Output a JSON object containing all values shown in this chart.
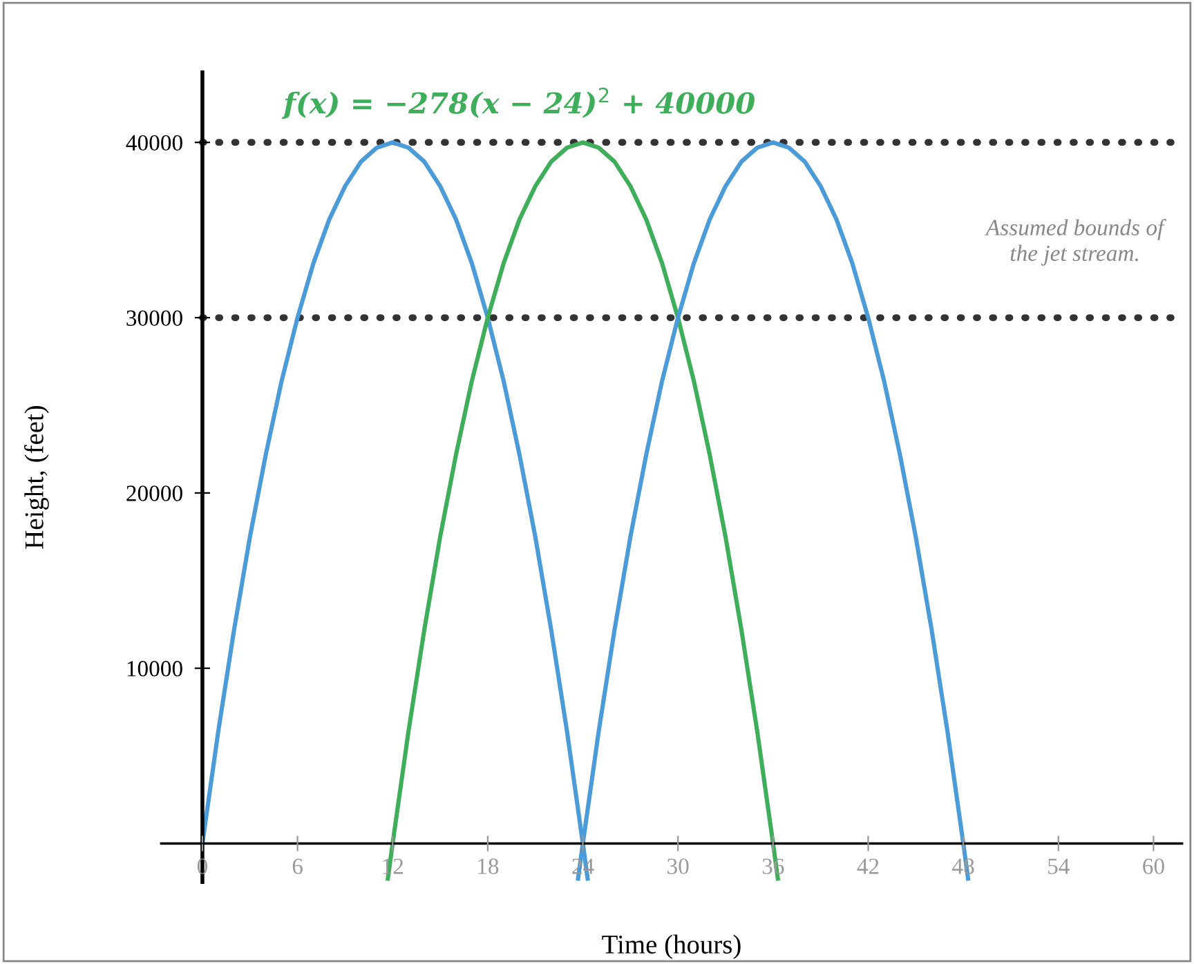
{
  "chart_data": {
    "type": "line",
    "xlabel": "Time (hours)",
    "ylabel": "Height, (feet)",
    "xlim": [
      -2.6,
      61.8
    ],
    "ylim": [
      -2200,
      44000
    ],
    "xticks": [
      {
        "value": 0,
        "label": "0"
      },
      6,
      12,
      18,
      24,
      30,
      36,
      42,
      48,
      54,
      60
    ],
    "yticks": [
      {
        "value": 0,
        "label": null
      },
      10000,
      20000,
      30000,
      40000
    ],
    "grid": false,
    "legend": false,
    "marker": "none",
    "line_style": "solid",
    "series": [
      {
        "color": "#4a9bd8",
        "x": [
          0,
          1,
          2,
          3,
          4,
          5,
          6,
          7,
          8,
          9,
          10,
          11,
          12,
          13,
          14,
          15,
          16,
          17,
          18,
          19,
          20,
          21,
          22,
          23,
          24,
          24.3
        ],
        "values": [
          0,
          6400,
          12200,
          17500,
          22200,
          26400,
          30000,
          33100,
          35600,
          37500,
          38900,
          39700,
          40000,
          39700,
          38900,
          37500,
          35600,
          33100,
          30000,
          26400,
          22200,
          17500,
          12200,
          6400,
          0,
          -2000
        ]
      },
      {
        "name": "f(x) = −278(x − 24)$^{2}$ + 40000",
        "color": "#3fae5a",
        "x": [
          11.7,
          12,
          13,
          14,
          15,
          16,
          17,
          18,
          19,
          20,
          21,
          22,
          23,
          24,
          25,
          26,
          27,
          28,
          29,
          30,
          31,
          32,
          33,
          34,
          35,
          36,
          36.3
        ],
        "values": [
          -2000,
          0,
          6400,
          12200,
          17500,
          22200,
          26400,
          30000,
          33100,
          35600,
          37500,
          38900,
          39700,
          40000,
          39700,
          38900,
          37500,
          35600,
          33100,
          30000,
          26400,
          22200,
          17500,
          12200,
          6400,
          0,
          -2000
        ]
      },
      {
        "color": "#4a9bd8",
        "x": [
          23.7,
          24,
          25,
          26,
          27,
          28,
          29,
          30,
          31,
          32,
          33,
          34,
          35,
          36,
          37,
          38,
          39,
          40,
          41,
          42,
          43,
          44,
          45,
          46,
          47,
          48,
          48.3
        ],
        "values": [
          -2000,
          0,
          6400,
          12200,
          17500,
          22200,
          26400,
          30000,
          33100,
          35600,
          37500,
          38900,
          39700,
          40000,
          39700,
          38900,
          37500,
          35600,
          33100,
          30000,
          26400,
          22200,
          17500,
          12200,
          6400,
          0,
          -2000
        ]
      }
    ],
    "ref_lines": [
      {
        "axis": "y",
        "value": 40000,
        "color": "#333333",
        "line_style": "dotted"
      },
      {
        "axis": "y",
        "value": 30000,
        "color": "#333333",
        "line_style": "dotted"
      }
    ],
    "annotations": [
      "Assumed bounds of\nthe jet stream."
    ]
  }
}
